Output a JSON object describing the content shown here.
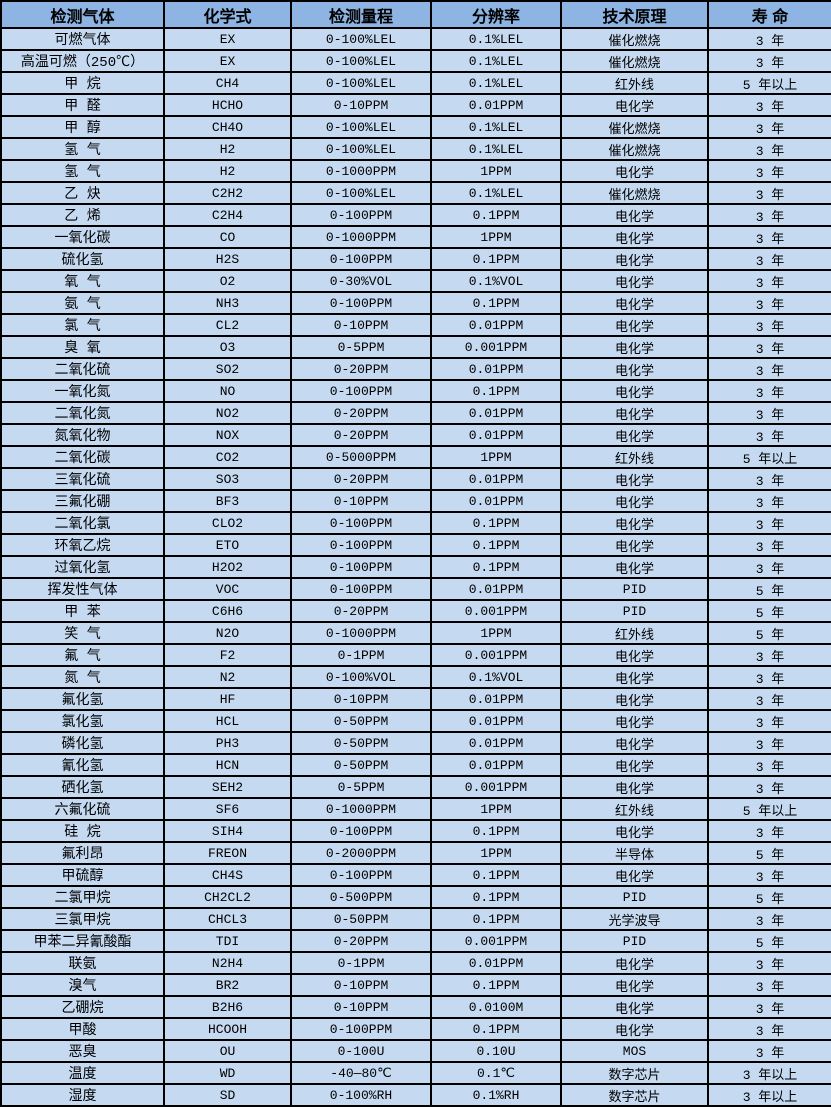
{
  "colors": {
    "header_bg": "#8db4e2",
    "row_bg": "#c5d9f1",
    "border": "#000000",
    "text": "#000000"
  },
  "table": {
    "columns": [
      "检测气体",
      "化学式",
      "检测量程",
      "分辨率",
      "技术原理",
      "寿 命"
    ],
    "rows": [
      [
        "可燃气体",
        "EX",
        "0-100%LEL",
        "0.1%LEL",
        "催化燃烧",
        "3 年"
      ],
      [
        "高温可燃（250℃）",
        "EX",
        "0-100%LEL",
        "0.1%LEL",
        "催化燃烧",
        "3 年"
      ],
      [
        "甲 烷",
        "CH4",
        "0-100%LEL",
        "0.1%LEL",
        "红外线",
        "5 年以上"
      ],
      [
        "甲 醛",
        "HCHO",
        "0-10PPM",
        "0.01PPM",
        "电化学",
        "3 年"
      ],
      [
        "甲 醇",
        "CH4O",
        "0-100%LEL",
        "0.1%LEL",
        "催化燃烧",
        "3 年"
      ],
      [
        "氢 气",
        "H2",
        "0-100%LEL",
        "0.1%LEL",
        "催化燃烧",
        "3 年"
      ],
      [
        "氢 气",
        "H2",
        "0-1000PPM",
        "1PPM",
        "电化学",
        "3 年"
      ],
      [
        "乙 炔",
        "C2H2",
        "0-100%LEL",
        "0.1%LEL",
        "催化燃烧",
        "3 年"
      ],
      [
        "乙 烯",
        "C2H4",
        "0-100PPM",
        "0.1PPM",
        "电化学",
        "3 年"
      ],
      [
        "一氧化碳",
        "CO",
        "0-1000PPM",
        "1PPM",
        "电化学",
        "3 年"
      ],
      [
        "硫化氢",
        "H2S",
        "0-100PPM",
        "0.1PPM",
        "电化学",
        "3 年"
      ],
      [
        "氧 气",
        "O2",
        "0-30%VOL",
        "0.1%VOL",
        "电化学",
        "3 年"
      ],
      [
        "氨 气",
        "NH3",
        "0-100PPM",
        "0.1PPM",
        "电化学",
        "3 年"
      ],
      [
        "氯 气",
        "CL2",
        "0-10PPM",
        "0.01PPM",
        "电化学",
        "3 年"
      ],
      [
        "臭 氧",
        "O3",
        "0-5PPM",
        "0.001PPM",
        "电化学",
        "3 年"
      ],
      [
        "二氧化硫",
        "SO2",
        "0-20PPM",
        "0.01PPM",
        "电化学",
        "3 年"
      ],
      [
        "一氧化氮",
        "NO",
        "0-100PPM",
        "0.1PPM",
        "电化学",
        "3 年"
      ],
      [
        "二氧化氮",
        "NO2",
        "0-20PPM",
        "0.01PPM",
        "电化学",
        "3 年"
      ],
      [
        "氮氧化物",
        "NOX",
        "0-20PPM",
        "0.01PPM",
        "电化学",
        "3 年"
      ],
      [
        "二氧化碳",
        "CO2",
        "0-5000PPM",
        "1PPM",
        "红外线",
        "5 年以上"
      ],
      [
        "三氧化硫",
        "SO3",
        "0-20PPM",
        "0.01PPM",
        "电化学",
        "3 年"
      ],
      [
        "三氟化硼",
        "BF3",
        "0-10PPM",
        "0.01PPM",
        "电化学",
        "3 年"
      ],
      [
        "二氧化氯",
        "CLO2",
        "0-100PPM",
        "0.1PPM",
        "电化学",
        "3 年"
      ],
      [
        "环氧乙烷",
        "ETO",
        "0-100PPM",
        "0.1PPM",
        "电化学",
        "3 年"
      ],
      [
        "过氧化氢",
        "H2O2",
        "0-100PPM",
        "0.1PPM",
        "电化学",
        "3 年"
      ],
      [
        "挥发性气体",
        "VOC",
        "0-100PPM",
        "0.01PPM",
        "PID",
        "5 年"
      ],
      [
        "甲 苯",
        "C6H6",
        "0-20PPM",
        "0.001PPM",
        "PID",
        "5 年"
      ],
      [
        "笑 气",
        "N2O",
        "0-1000PPM",
        "1PPM",
        "红外线",
        "5 年"
      ],
      [
        "氟 气",
        "F2",
        "0-1PPM",
        "0.001PPM",
        "电化学",
        "3 年"
      ],
      [
        "氮 气",
        "N2",
        "0-100%VOL",
        "0.1%VOL",
        "电化学",
        "3 年"
      ],
      [
        "氟化氢",
        "HF",
        "0-10PPM",
        "0.01PPM",
        "电化学",
        "3 年"
      ],
      [
        "氯化氢",
        "HCL",
        "0-50PPM",
        "0.01PPM",
        "电化学",
        "3 年"
      ],
      [
        "磷化氢",
        "PH3",
        "0-50PPM",
        "0.01PPM",
        "电化学",
        "3 年"
      ],
      [
        "氰化氢",
        "HCN",
        "0-50PPM",
        "0.01PPM",
        "电化学",
        "3 年"
      ],
      [
        "硒化氢",
        "SEH2",
        "0-5PPM",
        "0.001PPM",
        "电化学",
        "3 年"
      ],
      [
        "六氟化硫",
        "SF6",
        "0-1000PPM",
        "1PPM",
        "红外线",
        "5 年以上"
      ],
      [
        "硅 烷",
        "SIH4",
        "0-100PPM",
        "0.1PPM",
        "电化学",
        "3 年"
      ],
      [
        "氟利昂",
        "FREON",
        "0-2000PPM",
        "1PPM",
        "半导体",
        "5 年"
      ],
      [
        "甲硫醇",
        "CH4S",
        "0-100PPM",
        "0.1PPM",
        "电化学",
        "3 年"
      ],
      [
        "二氯甲烷",
        "CH2CL2",
        "0-500PPM",
        "0.1PPM",
        "PID",
        "5 年"
      ],
      [
        "三氯甲烷",
        "CHCL3",
        "0-50PPM",
        "0.1PPM",
        "光学波导",
        "3 年"
      ],
      [
        "甲苯二异氰酸酯",
        "TDI",
        "0-20PPM",
        "0.001PPM",
        "PID",
        "5 年"
      ],
      [
        "联氨",
        "N2H4",
        "0-1PPM",
        "0.01PPM",
        "电化学",
        "3 年"
      ],
      [
        "溴气",
        "BR2",
        "0-10PPM",
        "0.1PPM",
        "电化学",
        "3 年"
      ],
      [
        "乙硼烷",
        "B2H6",
        "0-10PPM",
        "0.0100M",
        "电化学",
        "3 年"
      ],
      [
        "甲酸",
        "HCOOH",
        "0-100PPM",
        "0.1PPM",
        "电化学",
        "3 年"
      ],
      [
        "恶臭",
        "OU",
        "0-100U",
        "0.10U",
        "MOS",
        "3 年"
      ],
      [
        "温度",
        "WD",
        "-40—80℃",
        "0.1℃",
        "数字芯片",
        "3 年以上"
      ],
      [
        "湿度",
        "SD",
        "0-100%RH",
        "0.1%RH",
        "数字芯片",
        "3 年以上"
      ]
    ]
  }
}
